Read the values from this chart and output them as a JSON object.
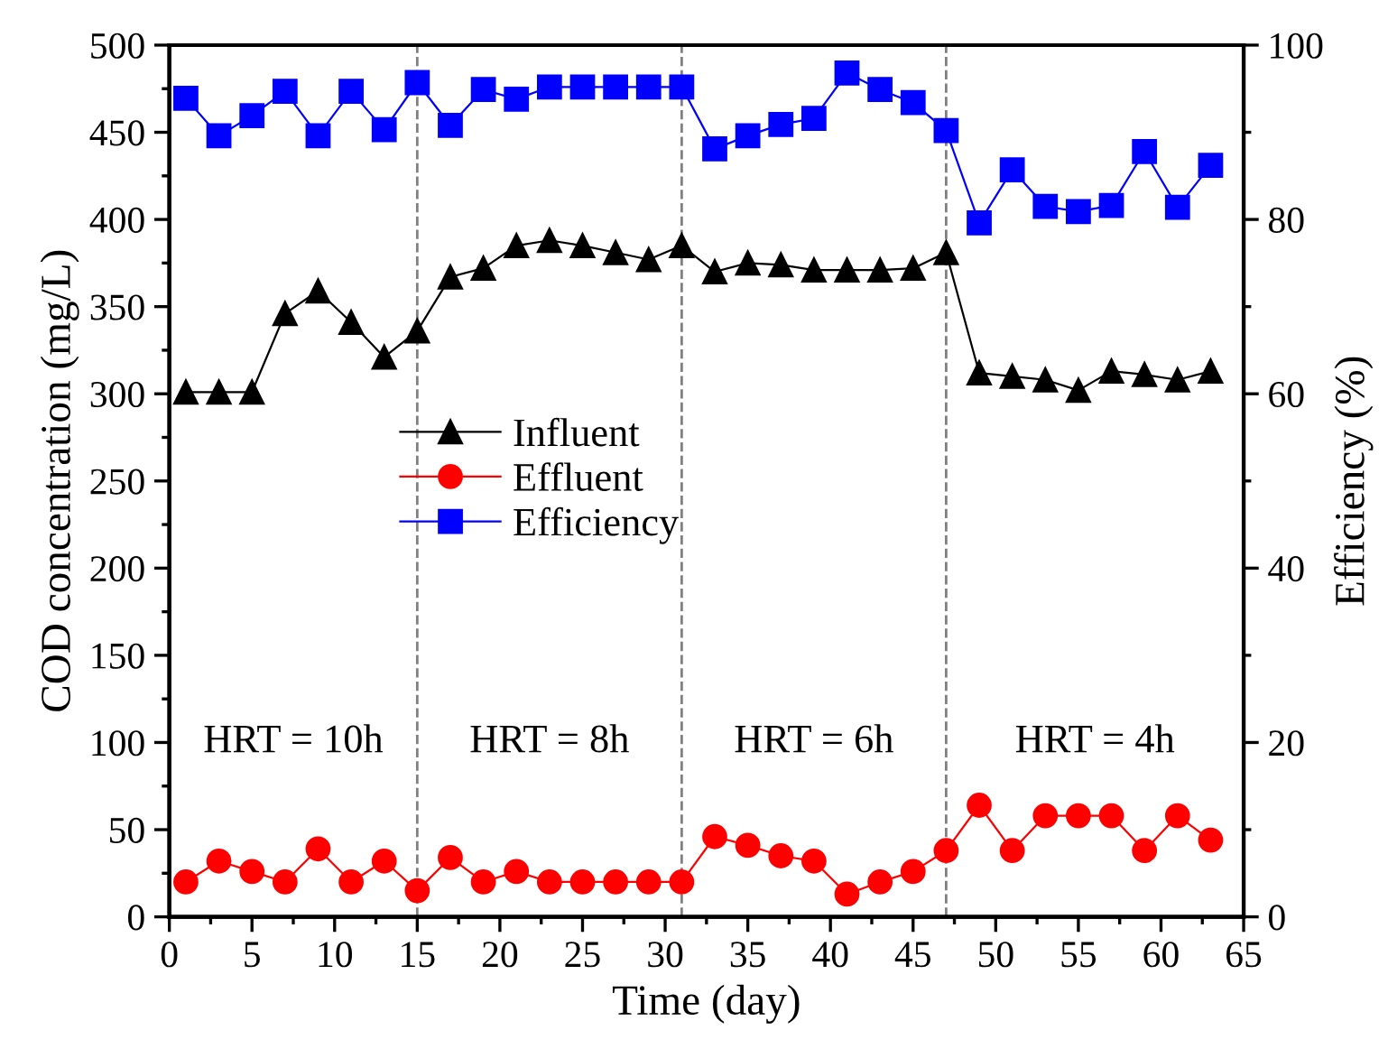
{
  "chart_data": {
    "type": "line",
    "xlabel": "Time (day)",
    "ylabel": "COD concentration (mg/L)",
    "y2label": "Efficiency (%)",
    "x": [
      1,
      3,
      5,
      7,
      9,
      11,
      13,
      15,
      17,
      19,
      21,
      23,
      25,
      27,
      29,
      31,
      33,
      35,
      37,
      39,
      41,
      43,
      45,
      47,
      49,
      51,
      53,
      55,
      57,
      59,
      61,
      63
    ],
    "series": [
      {
        "name": "Influent",
        "color": "#000000",
        "marker": "triangle",
        "values": [
          301,
          301,
          301,
          346,
          359,
          341,
          321,
          336,
          367,
          372,
          385,
          388,
          385,
          381,
          377,
          385,
          370,
          375,
          374,
          371,
          371,
          371,
          372,
          381,
          312,
          310,
          308,
          302,
          313,
          311,
          308,
          313
        ]
      },
      {
        "name": "Effluent",
        "color": "#ff0000",
        "marker": "circle",
        "values": [
          20,
          32,
          26,
          20,
          39,
          20,
          32,
          15,
          34,
          20,
          26,
          20,
          20,
          20,
          20,
          20,
          46,
          41,
          35,
          32,
          13,
          20,
          26,
          38,
          64,
          38,
          58,
          58,
          58,
          38,
          58,
          44
        ]
      },
      {
        "name": "Efficiency",
        "color": "#0000ff",
        "marker": "square",
        "axis": "y2",
        "values": [
          93.9,
          89.6,
          91.9,
          94.7,
          89.6,
          94.7,
          90.3,
          95.7,
          90.8,
          94.9,
          93.8,
          95.2,
          95.2,
          95.2,
          95.2,
          95.2,
          88.1,
          89.6,
          90.9,
          91.6,
          96.8,
          94.9,
          93.4,
          90.2,
          79.6,
          85.7,
          81.5,
          80.9,
          81.6,
          87.8,
          81.4,
          86.2
        ]
      }
    ],
    "xlim": [
      0,
      65
    ],
    "xticks": [
      0,
      5,
      10,
      15,
      20,
      25,
      30,
      35,
      40,
      45,
      50,
      55,
      60,
      65
    ],
    "ylim": [
      0,
      500
    ],
    "yticks": [
      0,
      50,
      100,
      150,
      200,
      250,
      300,
      350,
      400,
      450,
      500
    ],
    "y2lim": [
      0,
      100
    ],
    "y2ticks": [
      0,
      20,
      40,
      60,
      80,
      100
    ],
    "ref_lines": [
      {
        "axis": "x",
        "value": 15,
        "color": "#808080",
        "line_style": "dashed"
      },
      {
        "axis": "x",
        "value": 31,
        "color": "#808080",
        "line_style": "dashed"
      },
      {
        "axis": "x",
        "value": 47,
        "color": "#808080",
        "line_style": "dashed"
      }
    ],
    "annotations": [
      "HRT = 10h",
      "HRT = 8h",
      "HRT = 6h",
      "HRT = 4h"
    ],
    "legend": "center left",
    "grid": false,
    "line_style": "solid"
  }
}
